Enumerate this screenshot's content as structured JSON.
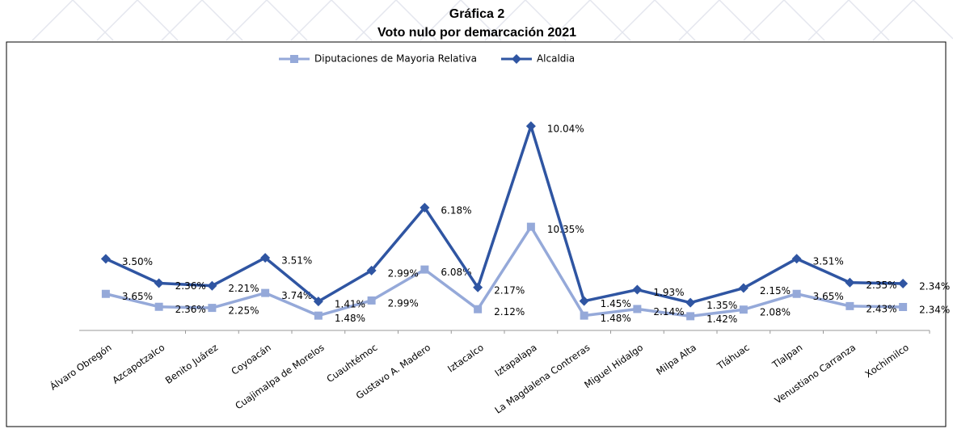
{
  "chart_data": {
    "type": "stacked-line",
    "title": "Gráfica 2",
    "subtitle": "Voto nulo por demarcación 2021",
    "categories": [
      "Álvaro Obregón",
      "Azcapotzalco",
      "Benito Juárez",
      "Coyoacán",
      "Cuajimalpa de Morelos",
      "Cuauhtémoc",
      "Gustavo A. Madero",
      "Iztacalco",
      "Iztapalapa",
      "La Magdalena Contreras",
      "Miguel Hidalgo",
      "Milpa Alta",
      "Tláhuac",
      "Tlalpan",
      "Venustiano Carranza",
      "Xochimilco"
    ],
    "legend": "top",
    "series": [
      {
        "name": "Diputaciones de Mayoria Relativa",
        "color": "#95a9d9",
        "marker": "square",
        "values": [
          3.65,
          2.36,
          2.25,
          3.74,
          1.48,
          2.99,
          6.08,
          2.12,
          10.35,
          1.48,
          2.14,
          1.42,
          2.08,
          3.65,
          2.43,
          2.34
        ],
        "value_labels": [
          "3.65%",
          "2.36%",
          "2.25%",
          "3.74%",
          "1.48%",
          "2.99%",
          "6.08%",
          "2.12%",
          "10.35%",
          "1.48%",
          "2.14%",
          "1.42%",
          "2.08%",
          "3.65%",
          "2.43%",
          "2.34%"
        ]
      },
      {
        "name": "Alcaldia",
        "color": "#2f55a2",
        "marker": "diamond",
        "values": [
          3.5,
          2.36,
          2.21,
          3.51,
          1.41,
          2.99,
          6.18,
          2.17,
          10.04,
          1.45,
          1.93,
          1.35,
          2.15,
          3.51,
          2.35,
          2.34
        ],
        "value_labels": [
          "3.50%",
          "2.36%",
          "2.21%",
          "3.51%",
          "1.41%",
          "2.99%",
          "6.18%",
          "2.17%",
          "10.04%",
          "1.45%",
          "1.93%",
          "1.35%",
          "2.15%",
          "3.51%",
          "2.35%",
          "2.34%"
        ]
      }
    ]
  }
}
